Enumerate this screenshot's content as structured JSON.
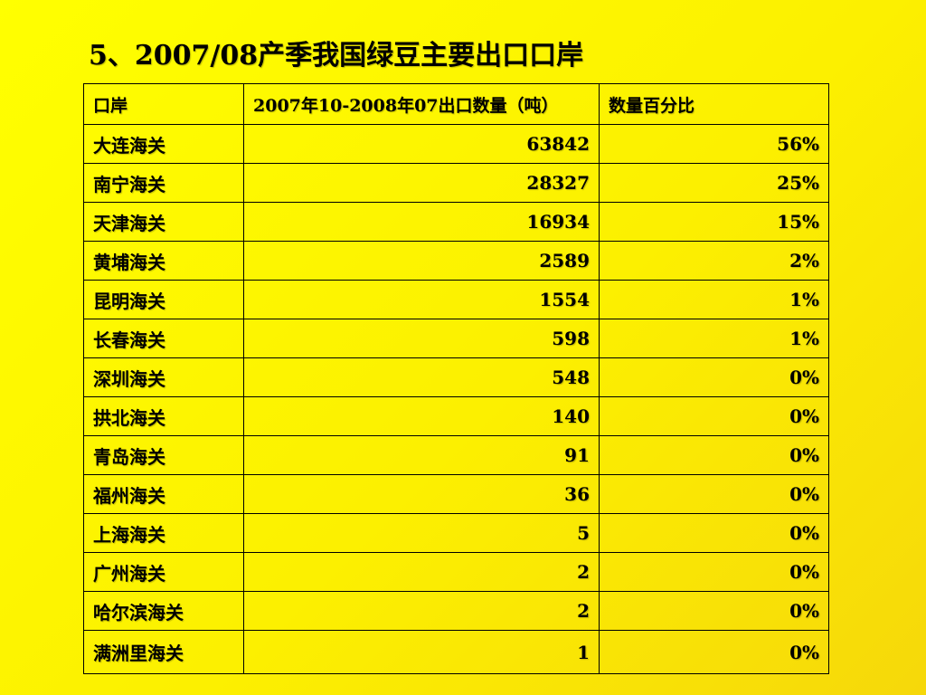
{
  "title": "5、2007/08产季我国绿豆主要出口口岸",
  "table": {
    "headers": [
      "口岸",
      "2007年10-2008年07出口数量（吨）",
      "数量百分比"
    ],
    "rows": [
      [
        "大连海关",
        "63842",
        "56%"
      ],
      [
        "南宁海关",
        "28327",
        "25%"
      ],
      [
        "天津海关",
        "16934",
        "15%"
      ],
      [
        "黄埔海关",
        "2589",
        "2%"
      ],
      [
        "昆明海关",
        "1554",
        "1%"
      ],
      [
        "长春海关",
        "598",
        "1%"
      ],
      [
        "深圳海关",
        "548",
        "0%"
      ],
      [
        "拱北海关",
        "140",
        "0%"
      ],
      [
        "青岛海关",
        "91",
        "0%"
      ],
      [
        "福州海关",
        "36",
        "0%"
      ],
      [
        "上海海关",
        "5",
        "0%"
      ],
      [
        "广州海关",
        "2",
        "0%"
      ],
      [
        "哈尔滨海关",
        "2",
        "0%"
      ],
      [
        "满洲里海关",
        "1",
        "0%"
      ]
    ]
  },
  "colors": {
    "background": "#ffff00",
    "text": "#000000",
    "border": "#000000"
  }
}
